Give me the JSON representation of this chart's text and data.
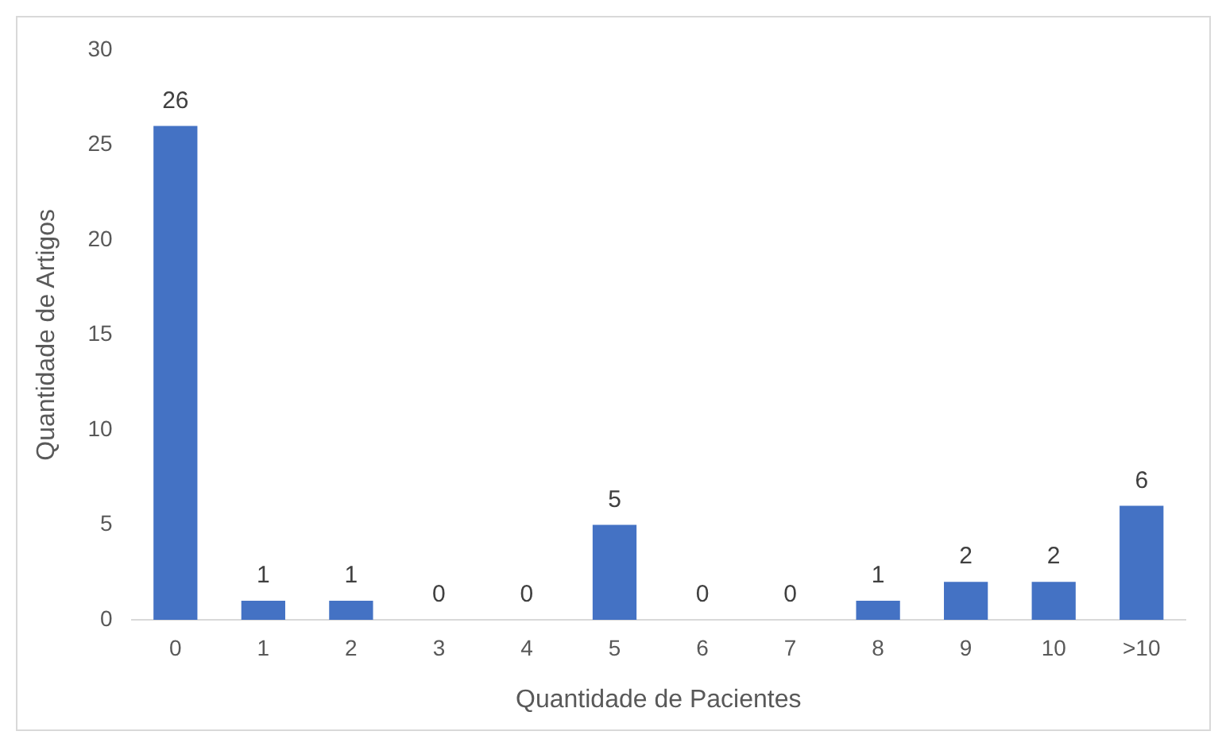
{
  "chart_data": {
    "type": "bar",
    "xlabel": "Quantidade de Pacientes",
    "ylabel": "Quantidade de Artigos",
    "categories": [
      "0",
      "1",
      "2",
      "3",
      "4",
      "5",
      "6",
      "7",
      "8",
      "9",
      "10",
      ">10"
    ],
    "values": [
      26,
      1,
      1,
      0,
      0,
      5,
      0,
      0,
      1,
      2,
      2,
      6
    ],
    "color": "#4472c4",
    "ylim": [
      0,
      30
    ],
    "yticks": [
      0,
      5,
      10,
      15,
      20,
      25,
      30
    ],
    "grid": false,
    "legend": false,
    "data_labels": true
  }
}
